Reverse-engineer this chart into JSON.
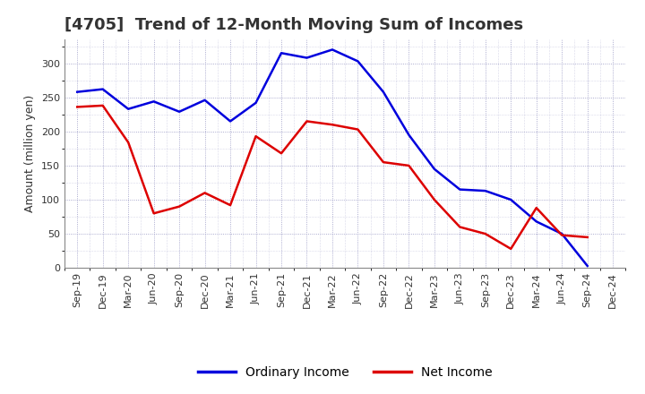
{
  "title": "[4705]  Trend of 12-Month Moving Sum of Incomes",
  "ylabel": "Amount (million yen)",
  "ylim": [
    0,
    335
  ],
  "yticks": [
    0,
    50,
    100,
    150,
    200,
    250,
    300
  ],
  "background_color": "#ffffff",
  "grid_color": "#8888bb",
  "labels": [
    "Sep-19",
    "Dec-19",
    "Mar-20",
    "Jun-20",
    "Sep-20",
    "Dec-20",
    "Mar-21",
    "Jun-21",
    "Sep-21",
    "Dec-21",
    "Mar-22",
    "Jun-22",
    "Sep-22",
    "Dec-22",
    "Mar-23",
    "Jun-23",
    "Sep-23",
    "Dec-23",
    "Mar-24",
    "Jun-24",
    "Sep-24",
    "Dec-24"
  ],
  "ordinary_income": [
    258,
    262,
    233,
    244,
    229,
    246,
    215,
    242,
    315,
    308,
    320,
    303,
    258,
    195,
    145,
    115,
    113,
    100,
    68,
    50,
    3,
    null
  ],
  "net_income": [
    236,
    238,
    184,
    80,
    90,
    110,
    92,
    193,
    168,
    215,
    210,
    203,
    155,
    150,
    100,
    60,
    50,
    28,
    88,
    48,
    45,
    null
  ],
  "ordinary_color": "#0000dd",
  "net_color": "#dd0000",
  "line_width": 1.8,
  "title_fontsize": 13,
  "tick_fontsize": 8,
  "ylabel_fontsize": 9,
  "legend_fontsize": 10
}
